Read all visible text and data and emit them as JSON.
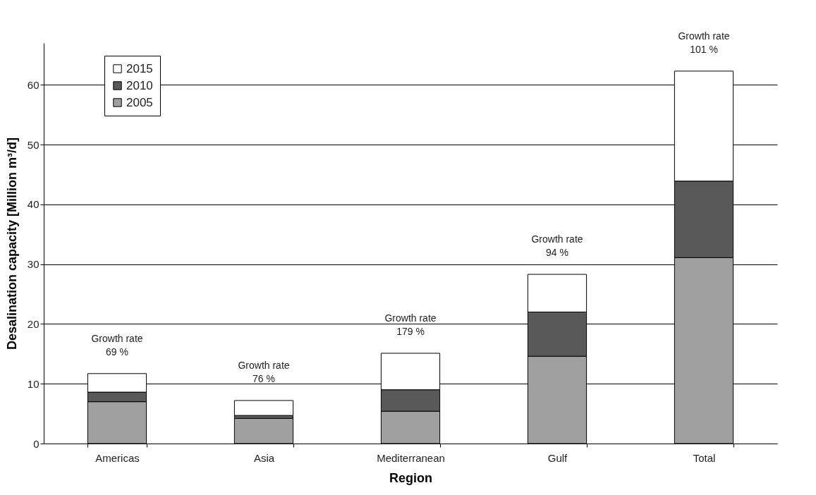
{
  "chart_data": {
    "type": "bar",
    "stacked": true,
    "xlabel": "Region",
    "ylabel": "Desalination capacity [Million m³/d]",
    "categories": [
      "Americas",
      "Asia",
      "Mediterranean",
      "Gulf",
      "Total"
    ],
    "series": [
      {
        "name": "2005",
        "color": "#a0a0a0",
        "values": [
          7.0,
          4.2,
          5.4,
          14.6,
          31.1
        ]
      },
      {
        "name": "2010",
        "color": "#595959",
        "values": [
          1.6,
          0.5,
          3.6,
          7.4,
          12.8
        ]
      },
      {
        "name": "2015",
        "color": "#ffffff",
        "values": [
          3.1,
          2.5,
          6.1,
          6.3,
          18.4
        ]
      }
    ],
    "ylim": [
      0,
      67
    ],
    "yticks": [
      0,
      10,
      20,
      30,
      40,
      50,
      60
    ],
    "grid": "y",
    "legend": "top left",
    "annotations": [
      {
        "text": "Growth rate\n69 %",
        "x": "Americas",
        "y": 11.7
      },
      {
        "text": "Growth rate\n76 %",
        "x": "Asia",
        "y": 7.2
      },
      {
        "text": "Growth rate\n179 %",
        "x": "Mediterranean",
        "y": 15.1
      },
      {
        "text": "Growth rate\n94 %",
        "x": "Gulf",
        "y": 28.3
      },
      {
        "text": "Growth rate\n101 %",
        "x": "Total",
        "y": 62.3
      }
    ]
  }
}
